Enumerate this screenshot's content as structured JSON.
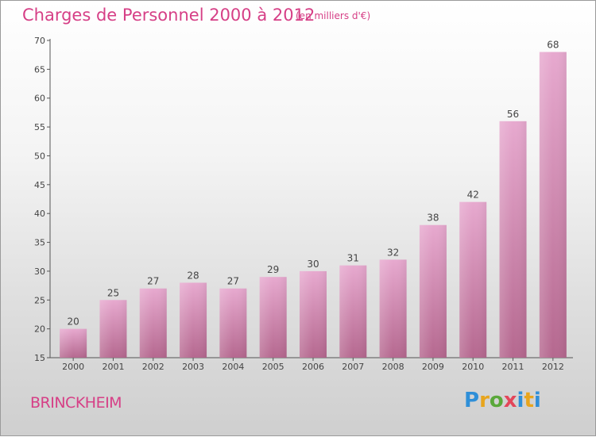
{
  "header": {
    "title": "Charges de Personnel 2000 à 2012",
    "subtitle": "(en milliers d'€)"
  },
  "footer": {
    "commune": "BRINCKHEIM",
    "brand_letters": [
      "P",
      "r",
      "o",
      "x",
      "i",
      "t",
      "i"
    ]
  },
  "colors": {
    "title": "#d63f86",
    "bar_top": "#e7a9cf",
    "bar_bottom": "#b5688f",
    "axis": "#555555"
  },
  "chart_data": {
    "type": "bar",
    "categories": [
      "2000",
      "2001",
      "2002",
      "2003",
      "2004",
      "2005",
      "2006",
      "2007",
      "2008",
      "2009",
      "2010",
      "2011",
      "2012"
    ],
    "values": [
      20,
      25,
      27,
      28,
      27,
      29,
      30,
      31,
      32,
      38,
      42,
      56,
      68
    ],
    "ylim": [
      15,
      70
    ],
    "yticks": [
      15,
      20,
      25,
      30,
      35,
      40,
      45,
      50,
      55,
      60,
      65,
      70
    ],
    "grid": false,
    "legend": "none"
  }
}
